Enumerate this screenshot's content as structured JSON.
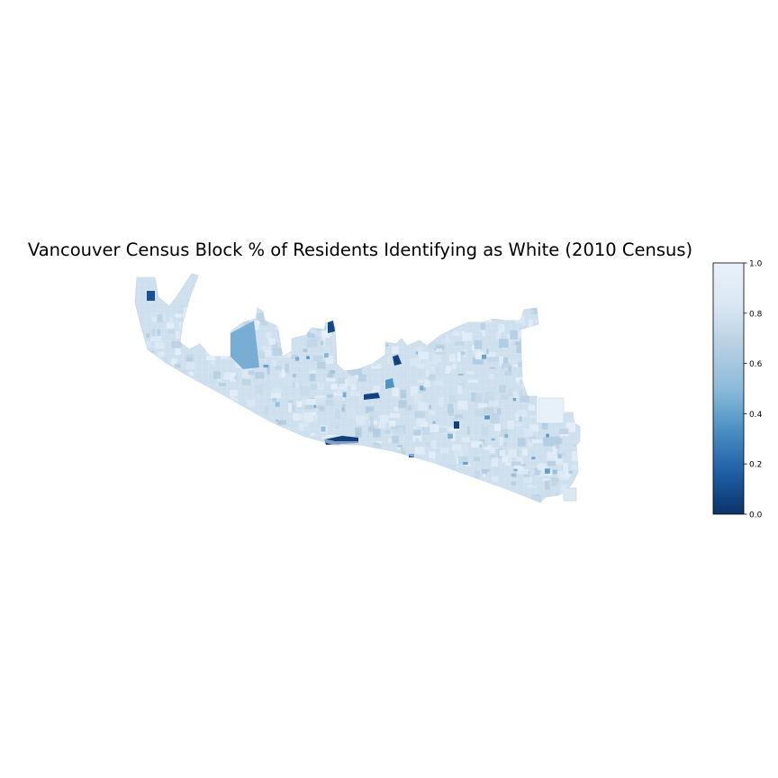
{
  "title": "Vancouver Census Block % of Residents Identifying as White (2010 Census)",
  "colormap": {
    "name": "Blues_r",
    "stops": [
      "#0b3369",
      "#1f5fa6",
      "#4a8fc3",
      "#8dbbdb",
      "#b6cfe2",
      "#dae7f3",
      "#e9f2fb"
    ]
  },
  "colorbar": {
    "min": 0.0,
    "max": 1.0,
    "ticks": [
      {
        "value": 0.0,
        "label": "0.0"
      },
      {
        "value": 0.2,
        "label": "0.2"
      },
      {
        "value": 0.4,
        "label": "0.4"
      },
      {
        "value": 0.6,
        "label": "0.6"
      },
      {
        "value": 0.8,
        "label": "0.8"
      },
      {
        "value": 1.0,
        "label": "1.0"
      }
    ]
  },
  "map": {
    "base_value": 0.78,
    "outline_color": "#c7d8e6"
  }
}
